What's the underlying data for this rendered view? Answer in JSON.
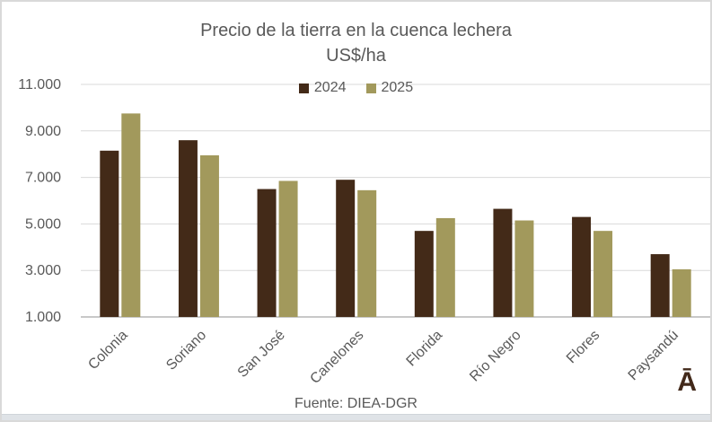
{
  "window": {
    "background": "#ffffff",
    "border_color": "#d9d9d9"
  },
  "chart_data": {
    "type": "bar",
    "title": "Precio de la tierra en la cuenca lechera",
    "subtitle": "US$/ha",
    "categories": [
      "Colonia",
      "Soriano",
      "San José",
      "Canelones",
      "Florida",
      "Río Negro",
      "Flores",
      "Paysandú"
    ],
    "series": [
      {
        "name": "2024",
        "color": "#432a18",
        "values": [
          8150,
          8600,
          6500,
          6900,
          4700,
          5650,
          5300,
          3700
        ]
      },
      {
        "name": "2025",
        "color": "#a2995c",
        "values": [
          9750,
          7950,
          6850,
          6450,
          5250,
          5150,
          4700,
          3050
        ]
      }
    ],
    "y_axis": {
      "min": 1000,
      "max": 11000,
      "ticks": [
        {
          "value": 1000,
          "label": "1.000"
        },
        {
          "value": 3000,
          "label": "3.000"
        },
        {
          "value": 5000,
          "label": "5.000"
        },
        {
          "value": 7000,
          "label": "7.000"
        },
        {
          "value": 9000,
          "label": "9.000"
        },
        {
          "value": 11000,
          "label": "11.000"
        }
      ]
    },
    "grid": true,
    "legend_position": "top",
    "text_color": "#595959",
    "gridline_color": "#d9d9d9",
    "axis_line_color": "#c8c8c8"
  },
  "footer": {
    "source": "Fuente: DIEA-DGR"
  },
  "logo": {
    "text": "Ā",
    "color": "#42291a"
  }
}
